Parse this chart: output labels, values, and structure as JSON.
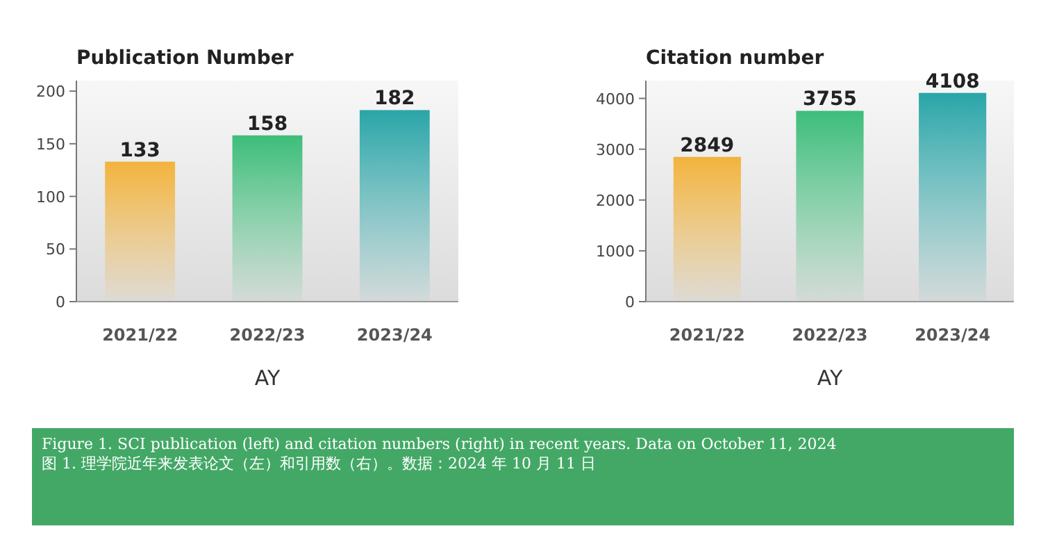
{
  "chart_data": [
    {
      "type": "bar",
      "title": "Publication Number",
      "xlabel": "AY",
      "categories": [
        "2021/22",
        "2022/23",
        "2023/24"
      ],
      "values": [
        133,
        158,
        182
      ],
      "colors": [
        "#f2b33d",
        "#3dbd7a",
        "#2aa5a8"
      ],
      "ylim": [
        0,
        210
      ],
      "yticks": [
        0,
        50,
        100,
        150,
        200
      ],
      "data_labels": true,
      "grid": false,
      "annotations": [
        "Figure 1. SCI publication (left) and citation numbers (right) in recent years. Data on October 11, 2024",
        "图 1. 理学院近年来发表论文（左）和引用数（右）。数据：2024 年 10 月 11 日"
      ]
    },
    {
      "type": "bar",
      "title": "Citation number",
      "xlabel": "AY",
      "categories": [
        "2021/22",
        "2022/23",
        "2023/24"
      ],
      "values": [
        2849,
        3755,
        4108
      ],
      "colors": [
        "#f2b33d",
        "#3dbd7a",
        "#2aa5a8"
      ],
      "ylim": [
        0,
        4350
      ],
      "yticks": [
        0,
        1000,
        2000,
        3000,
        4000
      ],
      "data_labels": true,
      "grid": false
    }
  ]
}
